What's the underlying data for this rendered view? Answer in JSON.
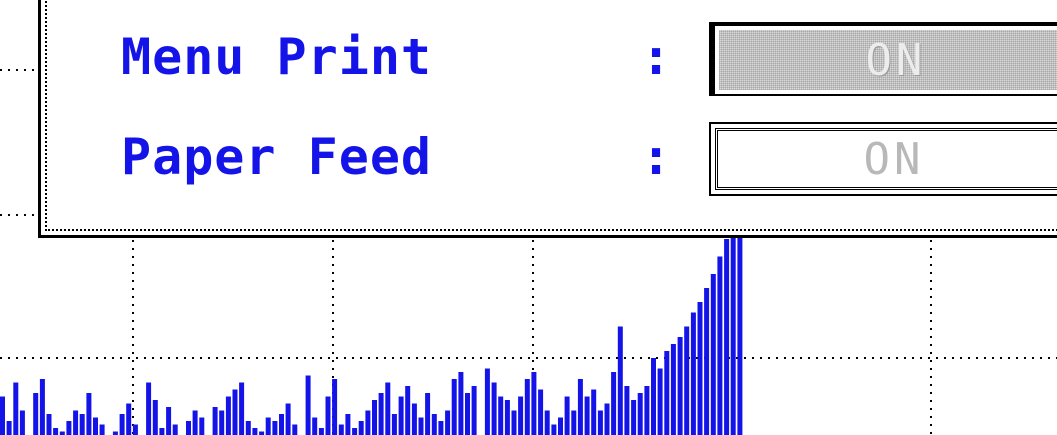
{
  "dialog": {
    "settings": [
      {
        "label": "Menu Print",
        "separator": ":",
        "value": "ON",
        "focused": true
      },
      {
        "label": "Paper Feed",
        "separator": ":",
        "value": "ON",
        "focused": false
      }
    ]
  },
  "colors": {
    "label": "#1414e8",
    "bars": "#1414e8",
    "grid": "#000000",
    "disabled_text": "#b8b8b8"
  },
  "chart_data": {
    "type": "bar",
    "grid": true,
    "color": "#1414e8",
    "note": "background spectrum bars, partially covered by dialog; values are relative heights",
    "values": [
      0.55,
      0.2,
      0.75,
      0.35,
      0.0,
      0.6,
      0.8,
      0.3,
      0.1,
      0.05,
      0.2,
      0.35,
      0.3,
      0.6,
      0.25,
      0.15,
      0.0,
      0.05,
      0.3,
      0.45,
      0.15,
      0.0,
      0.75,
      0.5,
      0.1,
      0.4,
      0.15,
      0.0,
      0.2,
      0.35,
      0.25,
      0.0,
      0.4,
      0.35,
      0.55,
      0.65,
      0.75,
      0.2,
      0.1,
      0.05,
      0.25,
      0.2,
      0.3,
      0.45,
      0.15,
      0.0,
      0.85,
      0.25,
      0.1,
      0.55,
      0.8,
      0.15,
      0.3,
      0.1,
      0.2,
      0.35,
      0.5,
      0.6,
      0.75,
      0.3,
      0.55,
      0.7,
      0.45,
      0.25,
      0.6,
      0.3,
      0.2,
      0.35,
      0.8,
      0.9,
      0.6,
      0.7,
      0.0,
      0.95,
      0.75,
      0.55,
      0.5,
      0.35,
      0.55,
      0.8,
      0.9,
      0.65,
      0.35,
      0.15,
      0.25,
      0.55,
      0.35,
      0.8,
      0.55,
      0.65,
      0.35,
      0.45,
      0.9,
      1.55,
      0.7,
      0.5,
      0.6,
      0.7,
      1.1,
      0.95,
      1.2,
      1.3,
      1.4,
      1.55,
      1.75,
      1.9,
      2.1,
      2.3,
      2.55,
      2.8,
      3.05,
      3.2
    ]
  }
}
